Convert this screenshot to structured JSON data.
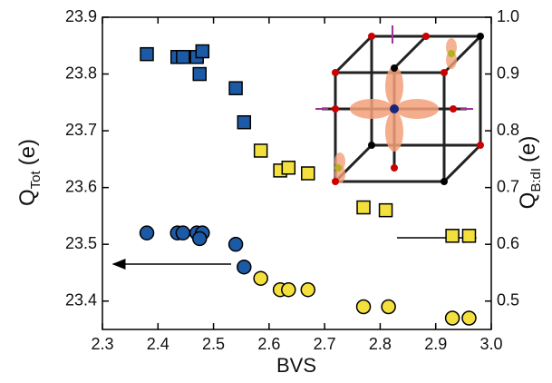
{
  "chart_data": {
    "type": "scatter",
    "xlabel": "BVS",
    "ylabel": {
      "main": "Q",
      "sub": "Tot",
      "unit": "(e)"
    },
    "y2label": {
      "main": "Q",
      "sub": "B:dI",
      "unit": "(e)"
    },
    "xlim": [
      2.3,
      3.0
    ],
    "xticks": [
      2.3,
      2.4,
      2.5,
      2.6,
      2.7,
      2.8,
      2.9,
      {
        "value": 3,
        "label": "3.0"
      }
    ],
    "ylim": [
      23.35,
      23.9
    ],
    "yticks": [
      23.4,
      23.5,
      23.6,
      23.7,
      23.8,
      23.9
    ],
    "y2lim": [
      0.45,
      1.0
    ],
    "y2ticks": [
      0.5,
      0.6,
      0.7,
      0.8,
      0.9,
      {
        "value": 1,
        "label": "1.0"
      }
    ],
    "series": [
      {
        "marker": "circle",
        "x": [
          2.38,
          2.435,
          2.445,
          2.47,
          2.48,
          2.475,
          2.54,
          2.555,
          2.585,
          2.62,
          2.635,
          2.67,
          2.77,
          2.815,
          2.93,
          2.96
        ],
        "values": [
          23.52,
          23.52,
          23.52,
          23.52,
          23.52,
          23.51,
          23.5,
          23.46,
          23.44,
          23.42,
          23.42,
          23.42,
          23.39,
          23.39,
          23.37,
          23.37
        ],
        "colors": [
          "#1d5aa6",
          "#1d5aa6",
          "#1d5aa6",
          "#1d5aa6",
          "#1d5aa6",
          "#1d5aa6",
          "#1d5aa6",
          "#1d5aa6",
          "#f3e03c",
          "#f3e03c",
          "#f3e03c",
          "#f3e03c",
          "#f3e03c",
          "#f3e03c",
          "#f3e03c",
          "#f3e03c"
        ]
      },
      {
        "marker": "square",
        "axis": "y2",
        "x": [
          2.38,
          2.435,
          2.445,
          2.47,
          2.48,
          2.475,
          2.54,
          2.555,
          2.585,
          2.62,
          2.635,
          2.67,
          2.77,
          2.81,
          2.93,
          2.96
        ],
        "values": [
          0.935,
          0.93,
          0.93,
          0.93,
          0.94,
          0.9,
          0.875,
          0.815,
          0.765,
          0.73,
          0.735,
          0.725,
          0.665,
          0.66,
          0.615,
          0.615
        ],
        "colors": [
          "#1d5aa6",
          "#1d5aa6",
          "#1d5aa6",
          "#1d5aa6",
          "#1d5aa6",
          "#1d5aa6",
          "#1d5aa6",
          "#1d5aa6",
          "#f3e03c",
          "#f3e03c",
          "#f3e03c",
          "#f3e03c",
          "#f3e03c",
          "#f3e03c",
          "#f3e03c",
          "#f3e03c"
        ]
      }
    ]
  }
}
